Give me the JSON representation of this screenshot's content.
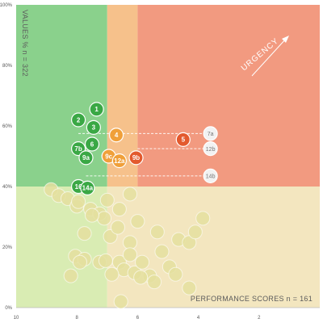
{
  "colors": {
    "zone_green_top": "#8ad18c",
    "zone_orange_top": "#f6c18b",
    "zone_red_top": "#f29a80",
    "zone_green_bottom": "#d9ecb3",
    "zone_light_bottom": "#f3e6bf",
    "point_green": "#3aa845",
    "point_orange": "#f0a03a",
    "point_red": "#e35a2e",
    "point_gray": "#f2f2f2",
    "point_faded": "#e4df9f",
    "dashed": "#ffffff"
  },
  "chart_data": {
    "type": "scatter",
    "xlabel": "PERFORMANCE SCORES",
    "xcount": "n = 161",
    "ylabel": "VALUES %",
    "ycount": "n = 322",
    "annotation": "URGENCY",
    "x_inverted": true,
    "xlim": [
      10,
      0
    ],
    "ylim": [
      0,
      100
    ],
    "x_ticks": [
      "10",
      "8",
      "6",
      "4",
      "2"
    ],
    "x_tick_values": [
      10,
      8,
      6,
      4,
      2
    ],
    "y_ticks": [
      "0%",
      "20%",
      "40%",
      "60%",
      "80%",
      "100%"
    ],
    "y_tick_values": [
      0,
      20,
      40,
      60,
      80,
      100
    ],
    "zones": {
      "green_max_x": 7,
      "orange_max_x": 6,
      "values_threshold": 40
    },
    "labeled_points": [
      {
        "label": "1",
        "x": 7.35,
        "y": 65.5,
        "group": "green"
      },
      {
        "label": "2",
        "x": 7.95,
        "y": 62.0,
        "group": "green"
      },
      {
        "label": "3",
        "x": 7.45,
        "y": 59.5,
        "group": "green"
      },
      {
        "label": "4",
        "x": 6.7,
        "y": 57.0,
        "group": "orange"
      },
      {
        "label": "5",
        "x": 4.5,
        "y": 55.5,
        "group": "red"
      },
      {
        "label": "6",
        "x": 7.5,
        "y": 54.0,
        "group": "green"
      },
      {
        "label": "7b",
        "x": 7.95,
        "y": 52.5,
        "group": "green"
      },
      {
        "label": "9a",
        "x": 7.7,
        "y": 49.5,
        "group": "green"
      },
      {
        "label": "9c",
        "x": 6.95,
        "y": 50.0,
        "group": "orange"
      },
      {
        "label": "12a",
        "x": 6.6,
        "y": 48.5,
        "group": "orange"
      },
      {
        "label": "9b",
        "x": 6.05,
        "y": 49.5,
        "group": "red"
      },
      {
        "label": "16",
        "x": 7.95,
        "y": 40.0,
        "group": "green"
      },
      {
        "label": "14a",
        "x": 7.65,
        "y": 39.5,
        "group": "green"
      },
      {
        "label": "7a",
        "x": 3.6,
        "y": 57.5,
        "group": "gray"
      },
      {
        "label": "12b",
        "x": 3.6,
        "y": 52.5,
        "group": "gray"
      },
      {
        "label": "14b",
        "x": 3.6,
        "y": 43.5,
        "group": "gray"
      }
    ],
    "reference_lines": [
      {
        "from": "7a",
        "x_start": 7.95,
        "y": 57.5
      },
      {
        "from": "12b",
        "x_start": 6.0,
        "y": 52.5
      },
      {
        "from": "14b",
        "x_start": 7.7,
        "y": 43.5
      }
    ],
    "background_points": [
      {
        "x": 8.85,
        "y": 39.0
      },
      {
        "x": 8.6,
        "y": 37.0
      },
      {
        "x": 8.3,
        "y": 36.0
      },
      {
        "x": 8.0,
        "y": 33.5
      },
      {
        "x": 7.95,
        "y": 35.0
      },
      {
        "x": 7.55,
        "y": 32.5
      },
      {
        "x": 7.25,
        "y": 31.0
      },
      {
        "x": 7.1,
        "y": 29.5
      },
      {
        "x": 7.0,
        "y": 35.5
      },
      {
        "x": 6.6,
        "y": 32.5
      },
      {
        "x": 6.25,
        "y": 37.5
      },
      {
        "x": 7.75,
        "y": 24.5
      },
      {
        "x": 8.05,
        "y": 17.0
      },
      {
        "x": 7.75,
        "y": 16.0
      },
      {
        "x": 7.9,
        "y": 15.0
      },
      {
        "x": 7.25,
        "y": 15.0
      },
      {
        "x": 7.05,
        "y": 15.5
      },
      {
        "x": 8.2,
        "y": 10.5
      },
      {
        "x": 6.9,
        "y": 23.5
      },
      {
        "x": 6.6,
        "y": 15.0
      },
      {
        "x": 6.45,
        "y": 12.5
      },
      {
        "x": 6.25,
        "y": 21.5
      },
      {
        "x": 6.25,
        "y": 17.5
      },
      {
        "x": 6.1,
        "y": 11.5
      },
      {
        "x": 5.85,
        "y": 15.0
      },
      {
        "x": 5.6,
        "y": 10.5
      },
      {
        "x": 5.35,
        "y": 25.0
      },
      {
        "x": 5.2,
        "y": 18.5
      },
      {
        "x": 4.95,
        "y": 13.5
      },
      {
        "x": 4.75,
        "y": 11.0
      },
      {
        "x": 4.65,
        "y": 22.5
      },
      {
        "x": 4.3,
        "y": 21.5
      },
      {
        "x": 4.1,
        "y": 25.0
      },
      {
        "x": 3.85,
        "y": 29.5
      },
      {
        "x": 4.3,
        "y": 6.5
      },
      {
        "x": 6.55,
        "y": 2.0
      },
      {
        "x": 6.65,
        "y": 26.5
      },
      {
        "x": 5.45,
        "y": 8.5
      },
      {
        "x": 7.5,
        "y": 30.5
      },
      {
        "x": 6.85,
        "y": 11.0
      },
      {
        "x": 5.9,
        "y": 10.0
      },
      {
        "x": 6.0,
        "y": 28.5
      }
    ]
  }
}
